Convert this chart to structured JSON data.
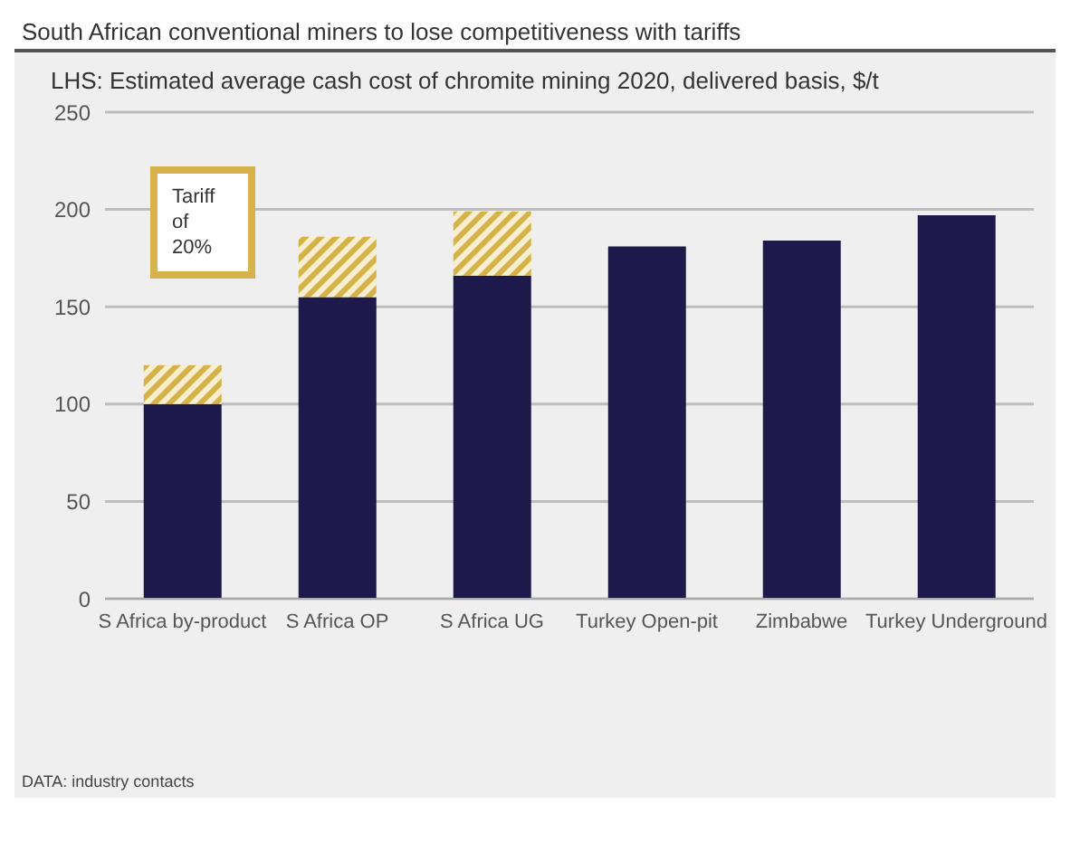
{
  "chart_data": {
    "type": "bar",
    "title": "South African conventional miners to lose competitiveness with tariffs",
    "subtitle": "LHS: Estimated average cash cost of chromite mining 2020, delivered basis, $/t",
    "annotations": [
      "DATA: industry contacts"
    ],
    "categories": [
      "S Africa by-product",
      "S Africa OP",
      "S Africa UG",
      "Turkey Open-pit",
      "Zimbabwe",
      "Turkey Underground"
    ],
    "stacked": true,
    "series": [
      {
        "color": "#1d1a4b",
        "values": [
          100,
          155,
          166,
          181,
          184,
          197
        ]
      },
      {
        "name": "Tariff of 20%",
        "color": "#d6b24a",
        "values": [
          20,
          31,
          33,
          null,
          null,
          null
        ]
      }
    ],
    "ylim": [
      0,
      250
    ],
    "yticks": [
      0,
      50,
      100,
      150,
      200,
      250
    ],
    "grid": "y",
    "legend": "top left"
  }
}
